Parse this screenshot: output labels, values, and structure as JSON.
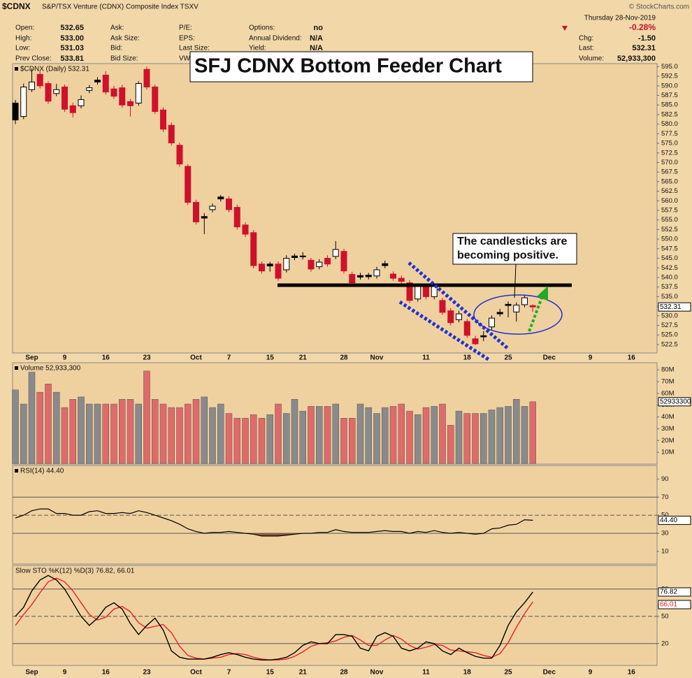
{
  "header": {
    "symbol": "$CDNX",
    "name": "S&P/TSX Venture (CDNX) Composite Index  TSXV",
    "copyright": "© StockCharts.com",
    "date": "Thursday  28-Nov-2019",
    "quote": [
      {
        "label": "Open:",
        "value": "532.65"
      },
      {
        "label": "High:",
        "value": "533.00"
      },
      {
        "label": "Low:",
        "value": "531.03"
      },
      {
        "label": "Prev Close:",
        "value": "533.81"
      }
    ],
    "book": [
      {
        "label": "Ask:"
      },
      {
        "label": "Ask Size:"
      },
      {
        "label": "Bid:"
      },
      {
        "label": "Bid Size:"
      }
    ],
    "stats": [
      {
        "label": "P/E:"
      },
      {
        "label": "EPS:"
      },
      {
        "label": "Last Size:"
      },
      {
        "label": "VWAP:"
      }
    ],
    "extras": [
      {
        "label": "Options:",
        "value": "no"
      },
      {
        "label": "Annual Dividend:",
        "value": "N/A"
      },
      {
        "label": "Yield:",
        "value": "N/A"
      }
    ],
    "change_pct": "-0.28%",
    "summary": [
      {
        "label": "Chg:",
        "value": "-1.50"
      },
      {
        "label": "Last:",
        "value": "532.31"
      },
      {
        "label": "Volume:",
        "value": "52,933,300"
      }
    ]
  },
  "chart_data": [
    {
      "type": "candlestick",
      "title": "$CDNX (Daily) 532.31",
      "headline": "SFJ CDNX Bottom Feeder Chart",
      "callout": [
        "The candlesticks are",
        "becoming positive."
      ],
      "categories": [
        null,
        null,
        "Sep",
        null,
        null,
        null,
        "9",
        null,
        null,
        null,
        null,
        "16",
        null,
        null,
        null,
        null,
        "23",
        null,
        null,
        null,
        null,
        null,
        "Oct",
        null,
        null,
        null,
        "7",
        null,
        null,
        null,
        null,
        "15",
        null,
        null,
        null,
        "21",
        null,
        null,
        null,
        null,
        "28",
        null,
        null,
        null,
        "Nov",
        null,
        null,
        null,
        null,
        null,
        "11",
        null,
        null,
        null,
        null,
        "18",
        null,
        null,
        null,
        null,
        "25",
        null,
        null,
        null,
        null,
        "Dec",
        null,
        null,
        null,
        null,
        "9",
        null,
        null,
        null,
        null,
        "16",
        null,
        null,
        null
      ],
      "open": [
        585.5,
        582,
        589,
        593,
        590.6,
        588,
        589.7,
        584.8,
        584.8,
        588.8,
        591.5,
        592.8,
        589.2,
        589.5,
        585.9,
        585.5,
        594.3,
        589.7,
        583.7,
        579.7,
        574.5,
        569,
        559.6,
        555.9,
        557.7,
        561,
        560.5,
        558.3,
        553.7,
        551.7,
        543.5,
        543.5,
        543.5,
        542,
        545.6,
        545.6,
        544.5,
        542.8,
        545,
        545.5,
        546.8,
        540.8,
        540.5,
        540.6,
        540.4,
        543.6,
        540.9,
        539.8,
        538.6,
        534.4,
        537.7,
        535,
        534,
        531.3,
        529,
        528.5,
        524,
        524.8,
        527.1,
        530.9,
        533,
        531,
        532.9,
        532.65,
        null,
        null,
        null,
        null,
        null,
        null,
        null,
        null,
        null,
        null,
        null,
        null,
        null,
        null,
        null
      ],
      "high": [
        586.3,
        590.6,
        594.5,
        594,
        591.2,
        590.5,
        590.3,
        585.6,
        587.5,
        590.2,
        592.3,
        593.8,
        590,
        590.3,
        586.6,
        591.2,
        595,
        590.3,
        584.4,
        580.4,
        575.2,
        569.6,
        560.3,
        556.8,
        559.3,
        561.5,
        561.2,
        559,
        554.4,
        552.4,
        544.2,
        544.1,
        544.2,
        545.8,
        546.2,
        546.6,
        545.1,
        544.8,
        545.8,
        549.5,
        547.5,
        541.5,
        541.2,
        541.2,
        542.8,
        544.4,
        541.6,
        540.5,
        539.3,
        538.4,
        538.4,
        538.4,
        534.7,
        532,
        531.3,
        529.2,
        524.8,
        526,
        530.1,
        531.8,
        533.7,
        533.5,
        535.4,
        533.0,
        null,
        null,
        null,
        null,
        null,
        null,
        null,
        null,
        null,
        null,
        null,
        null,
        null,
        null,
        null
      ],
      "low": [
        580,
        581.3,
        588.4,
        589.3,
        585.3,
        587.3,
        583.2,
        581.8,
        584.1,
        588.1,
        590.3,
        587.7,
        586.6,
        584.3,
        582,
        584.8,
        589,
        582.6,
        578,
        574.4,
        568.9,
        558.9,
        553.8,
        551.3,
        557,
        559.8,
        557,
        552.5,
        550.6,
        542.4,
        541,
        541.5,
        539.1,
        541.3,
        544.5,
        544.7,
        541.5,
        542.1,
        542.8,
        544.8,
        541,
        537.9,
        539.4,
        539.5,
        539.7,
        542.4,
        539.1,
        538.3,
        533.3,
        533.7,
        534.3,
        534.3,
        530.2,
        527.5,
        528.3,
        524.2,
        522.3,
        523.4,
        526.4,
        529.8,
        529.6,
        528.5,
        532.2,
        531.03,
        null,
        null,
        null,
        null,
        null,
        null,
        null,
        null,
        null,
        null,
        null,
        null,
        null,
        null,
        null
      ],
      "close": [
        581.1,
        589.7,
        591,
        590,
        586,
        589,
        583.9,
        583,
        586.4,
        589.5,
        591,
        588.4,
        587.3,
        585,
        584.8,
        590.6,
        589.7,
        583.3,
        578.7,
        575.1,
        569.6,
        559.6,
        554.5,
        555.5,
        558.6,
        560.5,
        557.7,
        553.2,
        551.3,
        543.1,
        541.7,
        543,
        539.8,
        545,
        545.2,
        545.4,
        542.2,
        544,
        543.5,
        547.3,
        541.7,
        538.6,
        540.1,
        540.2,
        542,
        543.1,
        539.8,
        539,
        534,
        537.7,
        535,
        537.7,
        530.9,
        528.2,
        530.5,
        524.9,
        522.7,
        524.5,
        529.4,
        530.5,
        532.7,
        532.8,
        534.7,
        532.31,
        null,
        null,
        null,
        null,
        null,
        null,
        null,
        null,
        null,
        null,
        null,
        null,
        null,
        null,
        null
      ],
      "up_color": "#000000",
      "down_color": "#d0112b",
      "ylim": [
        520.3,
        595.8
      ],
      "yticks": [
        {
          "value": 595,
          "label": "595.0"
        },
        592.5,
        {
          "value": 590,
          "label": "590.0"
        },
        587.5,
        {
          "value": 585,
          "label": "585.0"
        },
        582.5,
        {
          "value": 580,
          "label": "580.0"
        },
        577.5,
        {
          "value": 575,
          "label": "575.0"
        },
        572.5,
        {
          "value": 570,
          "label": "570.0"
        },
        567.5,
        {
          "value": 565,
          "label": "565.0"
        },
        562.5,
        {
          "value": 560,
          "label": "560.0"
        },
        557.5,
        {
          "value": 555,
          "label": "555.0"
        },
        552.5,
        {
          "value": 550,
          "label": "550.0"
        },
        547.5,
        {
          "value": 545,
          "label": "545.0"
        },
        542.5,
        {
          "value": 540,
          "label": "540.0"
        },
        537.5,
        {
          "value": 535,
          "label": "535.0"
        },
        532.5,
        {
          "value": 530,
          "label": "530.0"
        },
        527.5,
        {
          "value": 525,
          "label": "525.0"
        },
        522.5
      ]
    },
    {
      "type": "volume",
      "title": "Volume 52,933,300",
      "values": [
        63000000,
        51000000,
        78000000,
        61000000,
        68000000,
        61000000,
        48000000,
        55000000,
        57000000,
        51000000,
        51000000,
        51000000,
        51000000,
        55000000,
        55000000,
        51000000,
        79000000,
        55000000,
        51000000,
        48000000,
        48000000,
        51000000,
        55000000,
        57000000,
        48000000,
        51000000,
        43000000,
        39000000,
        39000000,
        42000000,
        39000000,
        42000000,
        51000000,
        43000000,
        55000000,
        45000000,
        49000000,
        49000000,
        49000000,
        51000000,
        39000000,
        39000000,
        51000000,
        48000000,
        43000000,
        48000000,
        49000000,
        51000000,
        45000000,
        42000000,
        48000000,
        49000000,
        51000000,
        33000000,
        45000000,
        43000000,
        43000000,
        43000000,
        46000000,
        48000000,
        49000000,
        55000000,
        49000000,
        52933300
      ],
      "up_color": "#8a8a8a",
      "down_color": "#e06a6a",
      "ylim": [
        0,
        86000000
      ],
      "yticks": [
        {
          "value": 80000000,
          "label": "80M"
        },
        {
          "value": 70000000,
          "label": "70M"
        },
        {
          "value": 60000000,
          "label": "60M"
        },
        {
          "value": 50000000,
          "label": "50M"
        },
        {
          "value": 40000000,
          "label": "40M"
        },
        {
          "value": 30000000,
          "label": "30M"
        },
        {
          "value": 20000000,
          "label": "20M"
        },
        {
          "value": 10000000,
          "label": "10M"
        }
      ]
    },
    {
      "type": "rsi",
      "title": "RSI(14) 44.40",
      "last_label": "44.40",
      "values": [
        47,
        50,
        55,
        57,
        57,
        52,
        52,
        50,
        50,
        54,
        55,
        52,
        52,
        53,
        52,
        55,
        53,
        50,
        47,
        44,
        40,
        35,
        32,
        30,
        31,
        31,
        32,
        31,
        30,
        29,
        27,
        27,
        27,
        28,
        29,
        30,
        30,
        31,
        31,
        34,
        32,
        31,
        31,
        31,
        32,
        33,
        32,
        32,
        30,
        32,
        31,
        33,
        31,
        30,
        31,
        30,
        29,
        30,
        35,
        36,
        39,
        40,
        45,
        44.4
      ],
      "color": "#000000",
      "fill_color": "#8b5a3c",
      "overbought": 70,
      "oversold": 30,
      "centerline": 50,
      "ylim": [
        -4,
        105
      ],
      "yticks": [
        90,
        70,
        50,
        30,
        10
      ]
    },
    {
      "type": "stochastic",
      "title": "Slow STO %K(12) %D(3) 76.82, 66.01",
      "series": [
        {
          "name": "%K",
          "color": "#000000",
          "values": [
            50,
            60,
            78,
            90,
            95,
            90,
            80,
            65,
            50,
            40,
            48,
            60,
            65,
            58,
            42,
            30,
            40,
            48,
            35,
            12,
            5,
            3,
            3,
            3,
            5,
            8,
            10,
            8,
            5,
            3,
            2,
            2,
            3,
            5,
            10,
            18,
            22,
            20,
            20,
            30,
            30,
            28,
            15,
            12,
            28,
            32,
            28,
            15,
            12,
            15,
            22,
            20,
            12,
            8,
            15,
            10,
            6,
            4,
            4,
            18,
            40,
            55,
            65,
            76.82
          ]
        },
        {
          "name": "%D",
          "color": "#e8202a",
          "values": [
            40,
            52,
            63,
            76,
            88,
            92,
            88,
            78,
            65,
            52,
            46,
            49,
            58,
            61,
            55,
            43,
            37,
            39,
            41,
            32,
            17,
            7,
            4,
            3,
            4,
            5,
            8,
            9,
            8,
            5,
            3,
            2,
            2,
            3,
            6,
            11,
            17,
            20,
            21,
            23,
            27,
            29,
            24,
            18,
            18,
            24,
            29,
            25,
            18,
            14,
            16,
            19,
            18,
            13,
            12,
            11,
            10,
            7,
            5,
            9,
            21,
            38,
            53,
            66.01
          ]
        }
      ],
      "overbought": 80,
      "oversold": 20,
      "centerline": 50,
      "ylim": [
        -4,
        106
      ],
      "yticks": [
        80,
        50,
        20
      ]
    }
  ]
}
